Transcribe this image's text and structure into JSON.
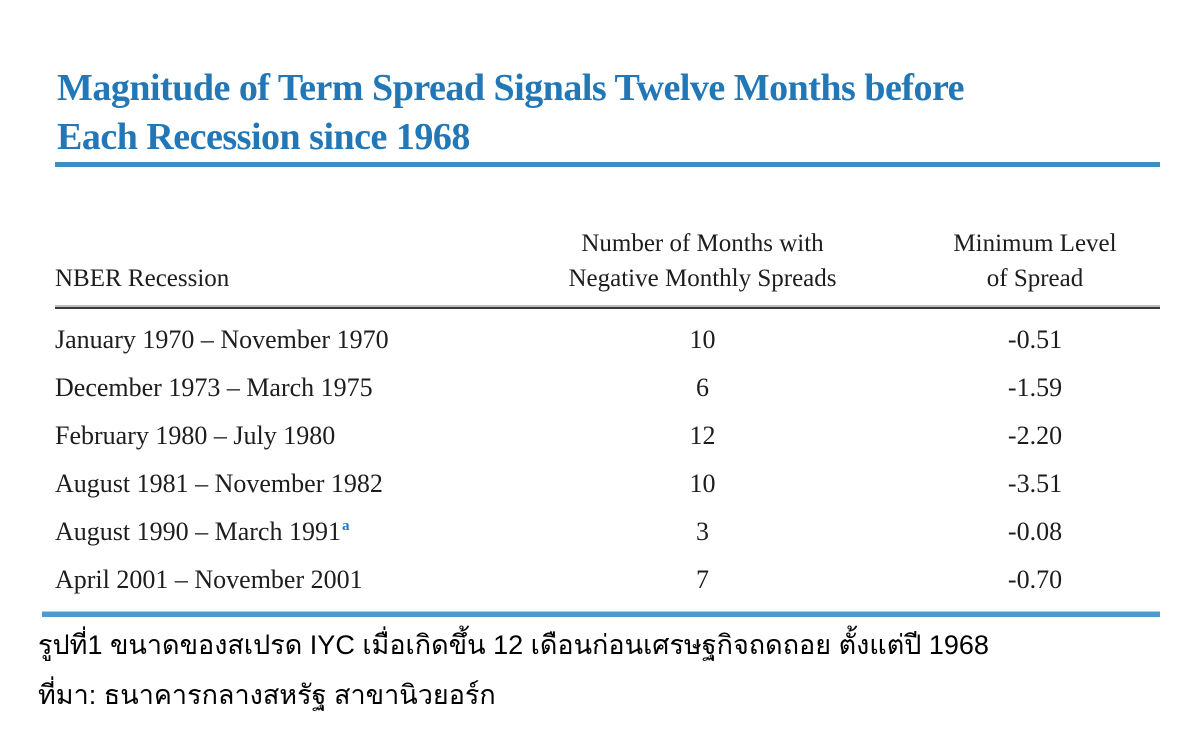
{
  "title": {
    "line1": "Magnitude of Term Spread Signals Twelve Months before",
    "line2": "Each Recession since 1968"
  },
  "table": {
    "headers": {
      "col1": "NBER Recession",
      "col2_line1": "Number of Months with",
      "col2_line2": "Negative Monthly Spreads",
      "col3_line1": "Minimum Level",
      "col3_line2": "of Spread"
    },
    "rows": [
      {
        "recession": "January 1970 – November 1970",
        "note": "",
        "months": "10",
        "min_spread": "-0.51"
      },
      {
        "recession": "December 1973 – March 1975",
        "note": "",
        "months": "6",
        "min_spread": "-1.59"
      },
      {
        "recession": "February 1980 – July 1980",
        "note": "",
        "months": "12",
        "min_spread": "-2.20"
      },
      {
        "recession": "August 1981 – November 1982",
        "note": "",
        "months": "10",
        "min_spread": "-3.51"
      },
      {
        "recession": "August 1990 – March 1991",
        "note": "a",
        "months": "3",
        "min_spread": "-0.08"
      },
      {
        "recession": "April 2001 – November 2001",
        "note": "",
        "months": "7",
        "min_spread": "-0.70"
      }
    ]
  },
  "caption": "รูปที่1 ขนาดของสเปรด IYC เมื่อเกิดขึ้น 12 เดือนก่อนเศรษฐกิจถดถอย ตั้งแต่ปี 1968",
  "source": "ที่มา: ธนาคารกลางสหรัฐ สาขานิวยอร์ก",
  "colors": {
    "title_blue": "#2277b7",
    "rule_blue": "#3d8cc3",
    "bottom_rule_blue": "#4d9bce",
    "header_rule_dark": "#3c3c3c",
    "body_text": "#1d1d1d"
  }
}
